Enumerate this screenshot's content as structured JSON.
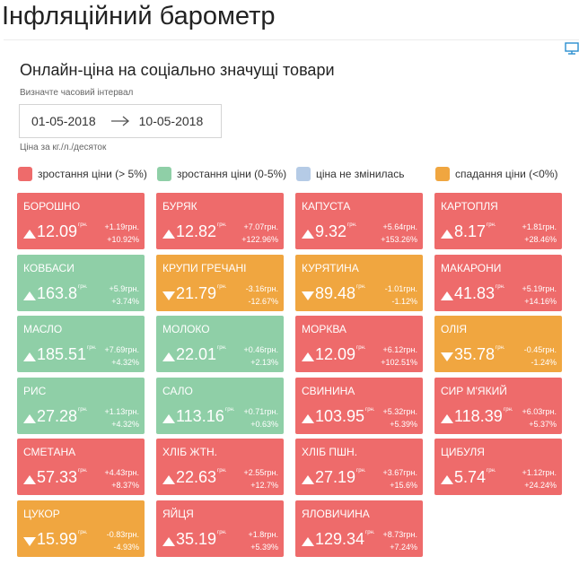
{
  "page_title": "Інфляційний барометр",
  "widget": {
    "title": "Онлайн-ціна на соціально значущі товари",
    "interval_label": "Визначте часовий інтервал",
    "date_from": "01-05-2018",
    "date_to": "10-05-2018",
    "unit_note": "Ціна за кг./л./десяток",
    "ad_icon": "monitor-icon"
  },
  "colors": {
    "up_strong": "#ee6b6b",
    "up_mild": "#8fcfa7",
    "unchanged": "#b5cbe6",
    "down": "#f0a640"
  },
  "legend": [
    {
      "label": "зростання ціни (> 5%)",
      "status": "up_strong"
    },
    {
      "label": "зростання ціни (0-5%)",
      "status": "up_mild"
    },
    {
      "label": "ціна не змінилась",
      "status": "unchanged"
    },
    {
      "label": "спадання ціни (<0%)",
      "status": "down"
    }
  ],
  "unit_label": "грн.",
  "products": [
    {
      "name": "Борошно",
      "price": "12.09",
      "delta_abs": "+1.19грн.",
      "delta_pct": "+10.92%",
      "direction": "up",
      "status": "up_strong"
    },
    {
      "name": "Буряк",
      "price": "12.82",
      "delta_abs": "+7.07грн.",
      "delta_pct": "+122.96%",
      "direction": "up",
      "status": "up_strong"
    },
    {
      "name": "Капуста",
      "price": "9.32",
      "delta_abs": "+5.64грн.",
      "delta_pct": "+153.26%",
      "direction": "up",
      "status": "up_strong"
    },
    {
      "name": "Картопля",
      "price": "8.17",
      "delta_abs": "+1.81грн.",
      "delta_pct": "+28.46%",
      "direction": "up",
      "status": "up_strong"
    },
    {
      "name": "Ковбаси",
      "price": "163.8",
      "delta_abs": "+5.9грн.",
      "delta_pct": "+3.74%",
      "direction": "up",
      "status": "up_mild"
    },
    {
      "name": "Крупи гречані",
      "price": "21.79",
      "delta_abs": "-3.16грн.",
      "delta_pct": "-12.67%",
      "direction": "down",
      "status": "down"
    },
    {
      "name": "Курятина",
      "price": "89.48",
      "delta_abs": "-1.01грн.",
      "delta_pct": "-1.12%",
      "direction": "down",
      "status": "down"
    },
    {
      "name": "Макарони",
      "price": "41.83",
      "delta_abs": "+5.19грн.",
      "delta_pct": "+14.16%",
      "direction": "up",
      "status": "up_strong"
    },
    {
      "name": "Масло",
      "price": "185.51",
      "delta_abs": "+7.69грн.",
      "delta_pct": "+4.32%",
      "direction": "up",
      "status": "up_mild"
    },
    {
      "name": "Молоко",
      "price": "22.01",
      "delta_abs": "+0.46грн.",
      "delta_pct": "+2.13%",
      "direction": "up",
      "status": "up_mild"
    },
    {
      "name": "Морква",
      "price": "12.09",
      "delta_abs": "+6.12грн.",
      "delta_pct": "+102.51%",
      "direction": "up",
      "status": "up_strong"
    },
    {
      "name": "Олія",
      "price": "35.78",
      "delta_abs": "-0.45грн.",
      "delta_pct": "-1.24%",
      "direction": "down",
      "status": "down"
    },
    {
      "name": "Рис",
      "price": "27.28",
      "delta_abs": "+1.13грн.",
      "delta_pct": "+4.32%",
      "direction": "up",
      "status": "up_mild"
    },
    {
      "name": "Сало",
      "price": "113.16",
      "delta_abs": "+0.71грн.",
      "delta_pct": "+0.63%",
      "direction": "up",
      "status": "up_mild"
    },
    {
      "name": "Свинина",
      "price": "103.95",
      "delta_abs": "+5.32грн.",
      "delta_pct": "+5.39%",
      "direction": "up",
      "status": "up_strong"
    },
    {
      "name": "Сир м'який",
      "price": "118.39",
      "delta_abs": "+6.03грн.",
      "delta_pct": "+5.37%",
      "direction": "up",
      "status": "up_strong"
    },
    {
      "name": "Сметана",
      "price": "57.33",
      "delta_abs": "+4.43грн.",
      "delta_pct": "+8.37%",
      "direction": "up",
      "status": "up_strong"
    },
    {
      "name": "Хліб жтн.",
      "price": "22.63",
      "delta_abs": "+2.55грн.",
      "delta_pct": "+12.7%",
      "direction": "up",
      "status": "up_strong"
    },
    {
      "name": "Хліб пшн.",
      "price": "27.19",
      "delta_abs": "+3.67грн.",
      "delta_pct": "+15.6%",
      "direction": "up",
      "status": "up_strong"
    },
    {
      "name": "Цибуля",
      "price": "5.74",
      "delta_abs": "+1.12грн.",
      "delta_pct": "+24.24%",
      "direction": "up",
      "status": "up_strong"
    },
    {
      "name": "Цукор",
      "price": "15.99",
      "delta_abs": "-0.83грн.",
      "delta_pct": "-4.93%",
      "direction": "down",
      "status": "down"
    },
    {
      "name": "Яйця",
      "price": "35.19",
      "delta_abs": "+1.8грн.",
      "delta_pct": "+5.39%",
      "direction": "up",
      "status": "up_strong"
    },
    {
      "name": "Яловичина",
      "price": "129.34",
      "delta_abs": "+8.73грн.",
      "delta_pct": "+7.24%",
      "direction": "up",
      "status": "up_strong"
    }
  ]
}
